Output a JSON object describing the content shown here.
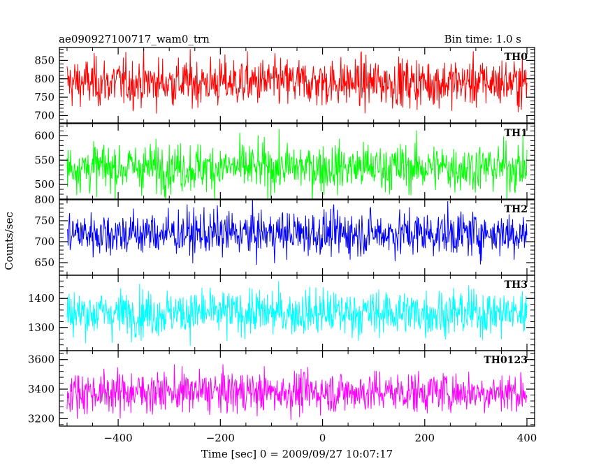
{
  "header": {
    "left": "ae090927100717_wam0_trn",
    "right": "Bin time: 1.0 s"
  },
  "chart_data": {
    "type": "line",
    "xlabel": "Time [sec] 0 = 2009/09/27 10:07:17",
    "ylabel": "Counts/sec",
    "xlim": [
      -515,
      415
    ],
    "x_ticks": [
      -400,
      -200,
      0,
      200,
      400
    ],
    "x_step": 1.0,
    "x_range": [
      -500,
      400
    ],
    "panels": [
      {
        "name": "TH0",
        "color": "#ff0000",
        "ylim": [
          680,
          885
        ],
        "yticks": [
          700,
          750,
          800,
          850
        ],
        "mean": 790,
        "sd": 33
      },
      {
        "name": "TH1",
        "color": "#00ff00",
        "ylim": [
          470,
          625
        ],
        "yticks": [
          500,
          550,
          600
        ],
        "mean": 535,
        "sd": 25
      },
      {
        "name": "TH2",
        "color": "#0000ff",
        "ylim": [
          620,
          800
        ],
        "yticks": [
          650,
          700,
          750,
          800
        ],
        "mean": 720,
        "sd": 27
      },
      {
        "name": "TH3",
        "color": "#00ffff",
        "ylim": [
          1220,
          1480
        ],
        "yticks": [
          1300,
          1400
        ],
        "mean": 1350,
        "sd": 40
      },
      {
        "name": "TH0123",
        "color": "#ff00ff",
        "ylim": [
          3150,
          3660
        ],
        "yticks": [
          3200,
          3400,
          3600
        ],
        "mean": 3380,
        "sd": 70
      }
    ]
  }
}
